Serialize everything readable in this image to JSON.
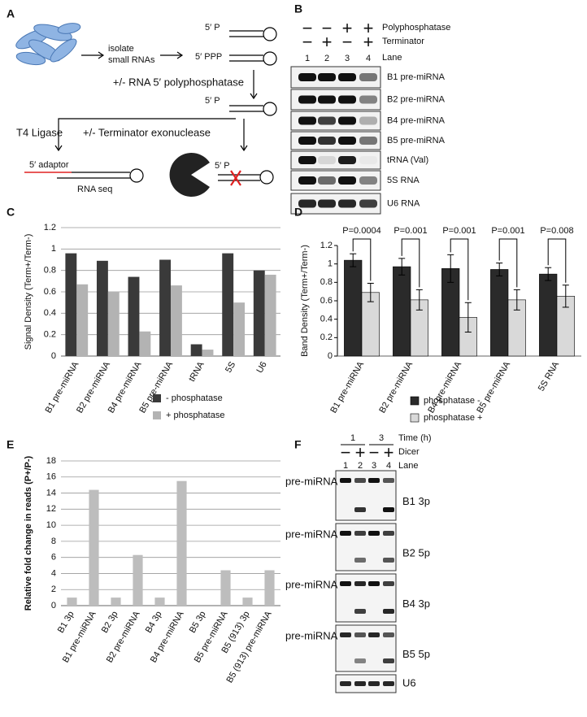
{
  "panel_a": {
    "label": "A",
    "isolate": [
      "isolate",
      "small RNAs"
    ],
    "p5_top": "5′ P",
    "ppp": "5′ PPP",
    "polyphosphatase": "+/- RNA 5′ polyphosphatase",
    "p5_mid": "5′ P",
    "ligase": "T4 Ligase",
    "terminator": "+/- Terminator exonuclease",
    "adaptor": "5′ adaptor",
    "seq": "RNA seq",
    "p5_bottom": "5′ P"
  },
  "panel_b": {
    "label": "B",
    "rows": [
      {
        "name": "Polyphosphatase",
        "signs": [
          "−",
          "−",
          "+",
          "+"
        ]
      },
      {
        "name": "Terminator",
        "signs": [
          "−",
          "+",
          "−",
          "+"
        ]
      }
    ],
    "lane_label": "Lane",
    "lanes": [
      "1",
      "2",
      "3",
      "4"
    ],
    "gels": [
      "B1 pre-miRNA",
      "B2 pre-miRNA",
      "B4 pre-miRNA",
      "B5 pre-miRNA",
      "tRNA (Val)",
      "5S RNA",
      "U6 RNA"
    ]
  },
  "panel_f": {
    "label": "F",
    "time_label": "Time (h)",
    "times": [
      "1",
      "3"
    ],
    "dicer_label": "Dicer",
    "signs": [
      "−",
      "+",
      "−",
      "+"
    ],
    "lane_label": "Lane",
    "lanes": [
      "1",
      "2",
      "3",
      "4"
    ],
    "left_labels": [
      "pre-miRNA",
      "pre-miRNA",
      "pre-miRNA",
      "pre-miRNA"
    ],
    "gels": [
      "B1 3p",
      "B2 5p",
      "B4 3p",
      "B5 5p",
      "U6"
    ]
  },
  "chart_data": [
    {
      "type": "bar",
      "label": "C",
      "ylabel": "Signal Density (Term+/Term-)",
      "categories": [
        "B1 pre-miRNA",
        "B2 pre-miRNA",
        "B4 pre-miRNA",
        "B5 pre-miRNA",
        "tRNA",
        "5S",
        "U6"
      ],
      "series": [
        {
          "name": "- phosphatase",
          "color": "#3a3a3a",
          "values": [
            0.96,
            0.89,
            0.74,
            0.9,
            0.11,
            0.96,
            0.8
          ]
        },
        {
          "name": "+ phosphatase",
          "color": "#b3b3b3",
          "values": [
            0.67,
            0.6,
            0.23,
            0.66,
            0.06,
            0.5,
            0.76
          ]
        }
      ],
      "ylim": [
        0,
        1.2
      ],
      "yticks": [
        0,
        0.2,
        0.4,
        0.6,
        0.8,
        1,
        1.2
      ],
      "grid": true,
      "legend": "bottom"
    },
    {
      "type": "bar",
      "label": "D",
      "ylabel": "Band Density (Term+/Term-)",
      "categories": [
        "B1 pre-miRNA",
        "B2 pre-miRNA",
        "B4 pre-miRNA",
        "B5 pre-miRNA",
        "5S RNA"
      ],
      "series": [
        {
          "name": "phosphatase -",
          "color": "#2a2a2a",
          "values": [
            1.04,
            0.97,
            0.95,
            0.94,
            0.89
          ],
          "errors": [
            0.07,
            0.09,
            0.15,
            0.07,
            0.07
          ]
        },
        {
          "name": "phosphatase +",
          "color": "#d9d9d9",
          "values": [
            0.69,
            0.61,
            0.42,
            0.61,
            0.65
          ],
          "errors": [
            0.1,
            0.11,
            0.16,
            0.11,
            0.12
          ]
        }
      ],
      "annotations": [
        "P=0.0004",
        "P=0.001",
        "P=0.001",
        "P=0.001",
        "P=0.008"
      ],
      "ylim": [
        0,
        1.2
      ],
      "yticks": [
        0,
        0.2,
        0.4,
        0.6,
        0.8,
        1,
        1.2
      ],
      "grid": false,
      "legend": "bottom"
    },
    {
      "type": "bar",
      "label": "E",
      "ylabel": "Relative fold change in reads (P+/P-)",
      "categories": [
        "B1 3p",
        "B1 pre-miRNA",
        "B2 3p",
        "B2 pre-miRNA",
        "B4 3p",
        "B4 pre-miRNA",
        "B5 3p",
        "B5 pre-miRNA",
        "B5 (913) 3p",
        "B5 (913) pre-miRNA"
      ],
      "values": [
        1,
        14.4,
        1,
        6.3,
        1,
        15.5,
        0,
        4.4,
        1,
        4.4
      ],
      "color": "#bdbdbd",
      "ylim": [
        0,
        18
      ],
      "yticks": [
        0,
        2,
        4,
        6,
        8,
        10,
        12,
        14,
        16,
        18
      ],
      "grid": true
    }
  ]
}
